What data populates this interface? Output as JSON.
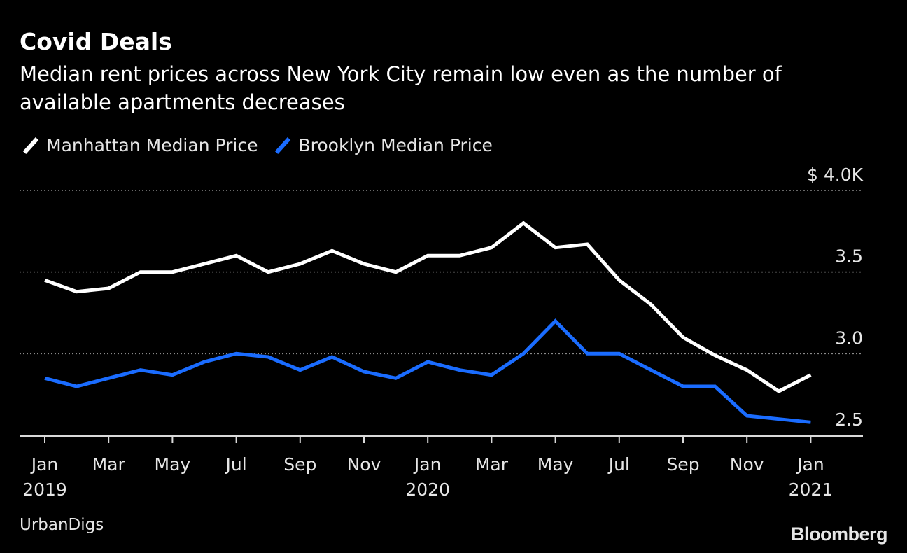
{
  "title": "Covid Deals",
  "subtitle": "Median rent prices across New York City remain low even as the number of available apartments decreases",
  "source": "UrbanDigs",
  "logo": "Bloomberg",
  "chart_data": {
    "type": "line",
    "x": [
      "2019-01",
      "2019-02",
      "2019-03",
      "2019-04",
      "2019-05",
      "2019-06",
      "2019-07",
      "2019-08",
      "2019-09",
      "2019-10",
      "2019-11",
      "2019-12",
      "2020-01",
      "2020-02",
      "2020-03",
      "2020-04",
      "2020-05",
      "2020-06",
      "2020-07",
      "2020-08",
      "2020-09",
      "2020-10",
      "2020-11",
      "2020-12",
      "2021-01"
    ],
    "series": [
      {
        "name": "Manhattan Median Price",
        "color": "#ffffff",
        "values": [
          3.45,
          3.38,
          3.4,
          3.5,
          3.5,
          3.55,
          3.6,
          3.5,
          3.55,
          3.63,
          3.55,
          3.5,
          3.6,
          3.6,
          3.65,
          3.8,
          3.65,
          3.67,
          3.45,
          3.3,
          3.1,
          2.99,
          2.9,
          2.77,
          2.87
        ]
      },
      {
        "name": "Brooklyn Median Price",
        "color": "#1a6cff",
        "values": [
          2.85,
          2.8,
          2.85,
          2.9,
          2.87,
          2.95,
          3.0,
          2.98,
          2.9,
          2.98,
          2.89,
          2.85,
          2.95,
          2.9,
          2.87,
          3.0,
          3.2,
          3.0,
          3.0,
          2.9,
          2.8,
          2.8,
          2.62,
          2.6,
          2.58
        ]
      }
    ],
    "ylim": [
      2.5,
      4.0
    ],
    "y_ticks": [
      {
        "value": 2.5,
        "label": "2.5"
      },
      {
        "value": 3.0,
        "label": "3.0"
      },
      {
        "value": 3.5,
        "label": "3.5"
      },
      {
        "value": 4.0,
        "label": "$ 4.0K"
      }
    ],
    "x_ticks": [
      {
        "index": 0,
        "label": "Jan",
        "year": "2019"
      },
      {
        "index": 2,
        "label": "Mar",
        "year": ""
      },
      {
        "index": 4,
        "label": "May",
        "year": ""
      },
      {
        "index": 6,
        "label": "Jul",
        "year": ""
      },
      {
        "index": 8,
        "label": "Sep",
        "year": ""
      },
      {
        "index": 10,
        "label": "Nov",
        "year": ""
      },
      {
        "index": 12,
        "label": "Jan",
        "year": "2020"
      },
      {
        "index": 14,
        "label": "Mar",
        "year": ""
      },
      {
        "index": 16,
        "label": "May",
        "year": ""
      },
      {
        "index": 18,
        "label": "Jul",
        "year": ""
      },
      {
        "index": 20,
        "label": "Sep",
        "year": ""
      },
      {
        "index": 22,
        "label": "Nov",
        "year": ""
      },
      {
        "index": 24,
        "label": "Jan",
        "year": "2021"
      }
    ],
    "grid": true,
    "legend": "top-left"
  }
}
